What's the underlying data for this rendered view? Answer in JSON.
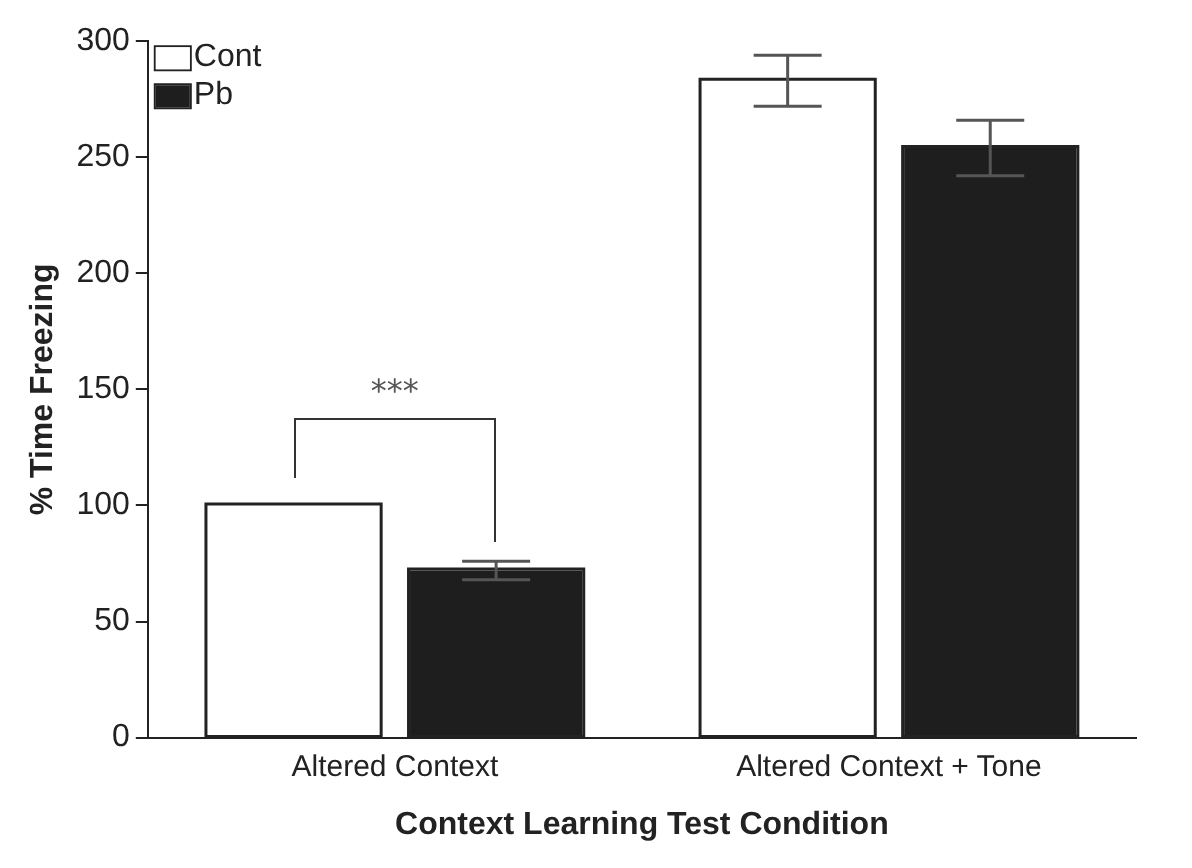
{
  "chart_data": {
    "type": "bar",
    "xlabel": "Context Learning Test Condition",
    "ylabel": "% Time Freezing",
    "categories": [
      "Altered Context",
      "Altered Context + Tone"
    ],
    "series": [
      {
        "name": "Cont",
        "color": "#ffffff",
        "values": [
          100,
          283
        ],
        "errors": [
          null,
          11
        ]
      },
      {
        "name": "Pb",
        "color": "#1e1e1e",
        "values": [
          72,
          254
        ],
        "errors": [
          4,
          12
        ]
      }
    ],
    "ylim": [
      0,
      300
    ],
    "yticks": [
      0,
      50,
      100,
      150,
      200,
      250,
      300
    ],
    "grid": false,
    "legend": "top left",
    "annotations": [
      "***"
    ]
  }
}
